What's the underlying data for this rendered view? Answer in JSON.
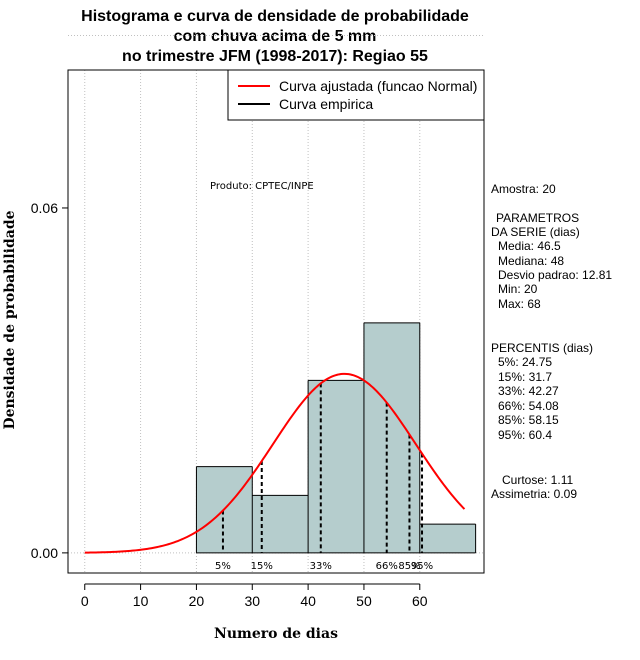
{
  "chart_data": {
    "type": "histogram",
    "title": [
      "Histograma e curva de densidade de probabilidade",
      "com chuva acima de 5 mm",
      "no trimestre JFM (1998-2017): Regiao 55"
    ],
    "xlabel": "Numero de dias",
    "ylabel": "Densidade de probabilidade",
    "xlim": [
      -3,
      71.5
    ],
    "ylim": [
      -0.0035,
      0.084
    ],
    "xticks": [
      "0",
      "10",
      "20",
      "30",
      "40",
      "50",
      "60"
    ],
    "yticks": [
      "0.00",
      "0.06"
    ],
    "bins": [
      {
        "from": 20,
        "to": 30,
        "density": 0.015
      },
      {
        "from": 30,
        "to": 40,
        "density": 0.01
      },
      {
        "from": 40,
        "to": 50,
        "density": 0.03
      },
      {
        "from": 50,
        "to": 60,
        "density": 0.04
      },
      {
        "from": 60,
        "to": 70,
        "density": 0.005
      }
    ],
    "normal_fit": {
      "mean": 46.5,
      "sd": 12.81,
      "from": 0,
      "to": 68
    },
    "percentiles": [
      {
        "label": "5%",
        "value": 24.75
      },
      {
        "label": "15%",
        "value": 31.7
      },
      {
        "label": "33%",
        "value": 42.27
      },
      {
        "label": "66%",
        "value": 54.08
      },
      {
        "label": "85%",
        "value": 58.15
      },
      {
        "label": "95%",
        "value": 60.4
      }
    ],
    "legend": [
      "Curva ajustada (funcao Normal)",
      "Curva empirica"
    ],
    "colors": {
      "bar_fill": "#b5cdcd",
      "fit_line": "#ff0000",
      "empirical": "#000000",
      "grid": "#c0c0c0"
    },
    "annotation": "Produto: CPTEC/INPE"
  },
  "stats": {
    "amostra": "Amostra: 20",
    "params_title": "PARAMETROS",
    "params_subtitle": "DA SERIE (dias)",
    "media": "Media: 46.5",
    "mediana": "Mediana: 48",
    "desvio": "Desvio padrao: 12.81",
    "min": "Min: 20",
    "max": "Max: 68",
    "percentis_title": "PERCENTIS (dias)",
    "p5": "5%: 24.75",
    "p15": "15%: 31.7",
    "p33": "33%: 42.27",
    "p66": "66%: 54.08",
    "p85": "85%: 58.15",
    "p95": "95%: 60.4",
    "curtose": "Curtose: 1.11",
    "assimetria": "Assimetria: 0.09"
  }
}
